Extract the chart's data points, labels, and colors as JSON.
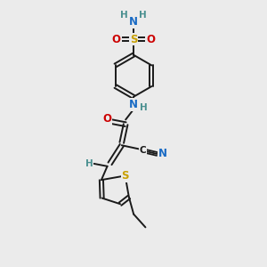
{
  "bg_color": "#ebebeb",
  "atom_colors": {
    "C": "#1a1a1a",
    "N": "#1a6bc4",
    "O": "#cc0000",
    "S_sulfonyl": "#c8a000",
    "S_thio": "#c8a000",
    "H": "#4a9090"
  },
  "bond_color": "#1a1a1a",
  "font_size_atom": 8.5,
  "font_size_H": 7.5
}
